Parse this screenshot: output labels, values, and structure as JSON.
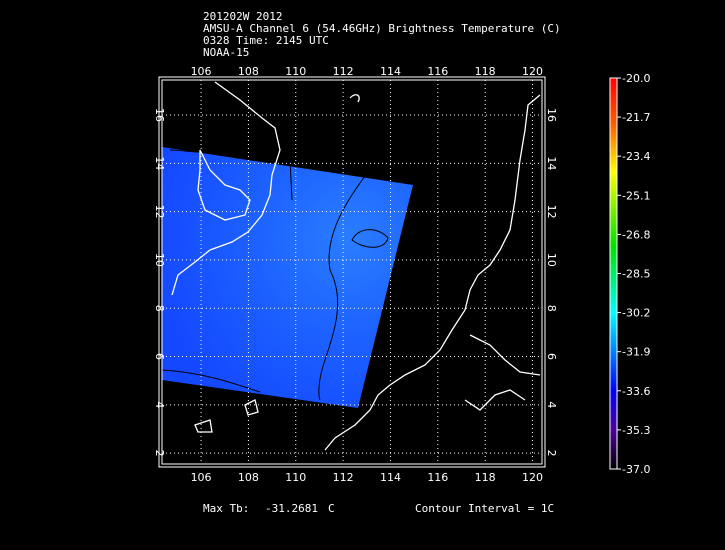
{
  "header": {
    "line1": "201202W 2012",
    "line2": "AMSU-A Channel 6 (54.46GHz) Brightness Temperature (C)",
    "line3": "0328 Time: 2145 UTC",
    "line4": "NOAA-15"
  },
  "footer": {
    "max_label": "Max Tb:",
    "max_value": "-31.2681",
    "max_unit": "C",
    "contour": "Contour Interval = 1C"
  },
  "chart_data": {
    "type": "heatmap",
    "title": "AMSU-A Channel 6 (54.46GHz) Brightness Temperature (C)",
    "x_ticks": [
      "106",
      "108",
      "110",
      "112",
      "114",
      "116",
      "118",
      "120"
    ],
    "y_ticks": [
      "2",
      "4",
      "6",
      "8",
      "10",
      "12",
      "14",
      "16"
    ],
    "xlim": [
      104.35,
      120.4
    ],
    "ylim": [
      1.55,
      17.45
    ],
    "grid": true,
    "swath_corners_lonlat": [
      [
        104.35,
        14.8
      ],
      [
        115.0,
        13.2
      ],
      [
        112.7,
        3.9
      ],
      [
        104.35,
        5.2
      ]
    ],
    "field_range": [
      -33.0,
      -31.27
    ],
    "contour_interval": 1,
    "colorbar": {
      "ticks": [
        "-20.0",
        "-21.7",
        "-23.4",
        "-25.1",
        "-26.8",
        "-28.5",
        "-30.2",
        "-31.9",
        "-33.6",
        "-35.3",
        "-37.0"
      ],
      "range": [
        -37.0,
        -20.0
      ],
      "colors": [
        "#ff0000",
        "#ff8000",
        "#ffff00",
        "#00e000",
        "#00ffff",
        "#0060ff",
        "#0000ff",
        "#6000c0",
        "#000000"
      ]
    }
  }
}
